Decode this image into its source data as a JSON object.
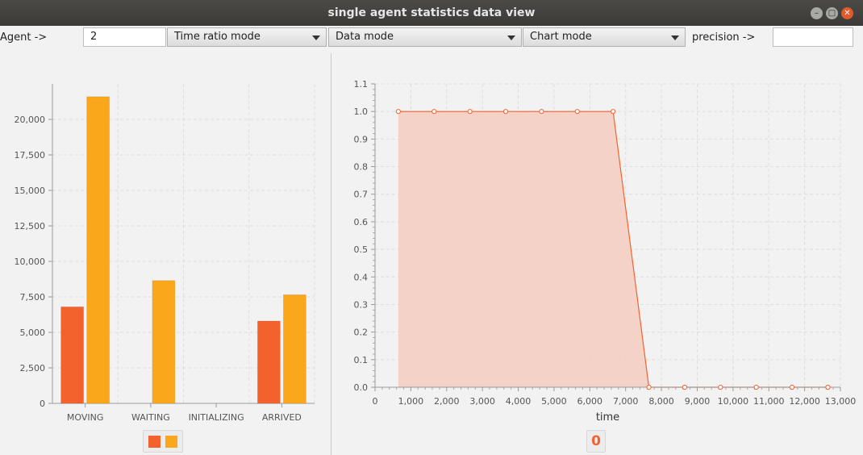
{
  "window": {
    "title": "single agent statistics data view"
  },
  "toolbar": {
    "agent_label": "Agent ->",
    "agent_value": "2",
    "time_ratio_mode": "Time ratio mode",
    "data_mode": "Data mode",
    "chart_mode": "Chart mode",
    "precision_label": "precision ->",
    "precision_value": ""
  },
  "colors": {
    "series1": "#f3622d",
    "series2": "#fba71b",
    "area_fill": "#f5cdc0"
  },
  "chart_data": [
    {
      "type": "bar",
      "categories": [
        "MOVING",
        "WAITING",
        "INITIALIZING",
        "ARRIVED"
      ],
      "series": [
        {
          "values": [
            6800,
            null,
            null,
            5800
          ]
        },
        {
          "values": [
            21600,
            8650,
            null,
            7650
          ]
        }
      ],
      "ylim": [
        0,
        22500
      ],
      "yticks": [
        "0",
        "2,500",
        "5,000",
        "7,500",
        "10,000",
        "12,500",
        "15,000",
        "17,500",
        "20,000"
      ],
      "grid": true,
      "legend": "bottom"
    },
    {
      "type": "area",
      "x": [
        650,
        1650,
        2650,
        3650,
        4650,
        5650,
        6650,
        7650,
        8650,
        9650,
        10650,
        11650,
        12650
      ],
      "y": [
        1.0,
        1.0,
        1.0,
        1.0,
        1.0,
        1.0,
        1.0,
        0.0,
        0.0,
        0.0,
        0.0,
        0.0,
        0.0
      ],
      "xlabel": "time",
      "xlim": [
        0,
        13000
      ],
      "ylim": [
        0.0,
        1.1
      ],
      "xticks": [
        "0",
        "1,000",
        "2,000",
        "3,000",
        "4,000",
        "5,000",
        "6,000",
        "7,000",
        "8,000",
        "9,000",
        "10,000",
        "11,000",
        "12,000",
        "13,000"
      ],
      "yticks": [
        "0.0",
        "0.1",
        "0.2",
        "0.3",
        "0.4",
        "0.5",
        "0.6",
        "0.7",
        "0.8",
        "0.9",
        "1.0",
        "1.1"
      ],
      "grid": true,
      "legend": "bottom",
      "legend_label": "0"
    }
  ]
}
